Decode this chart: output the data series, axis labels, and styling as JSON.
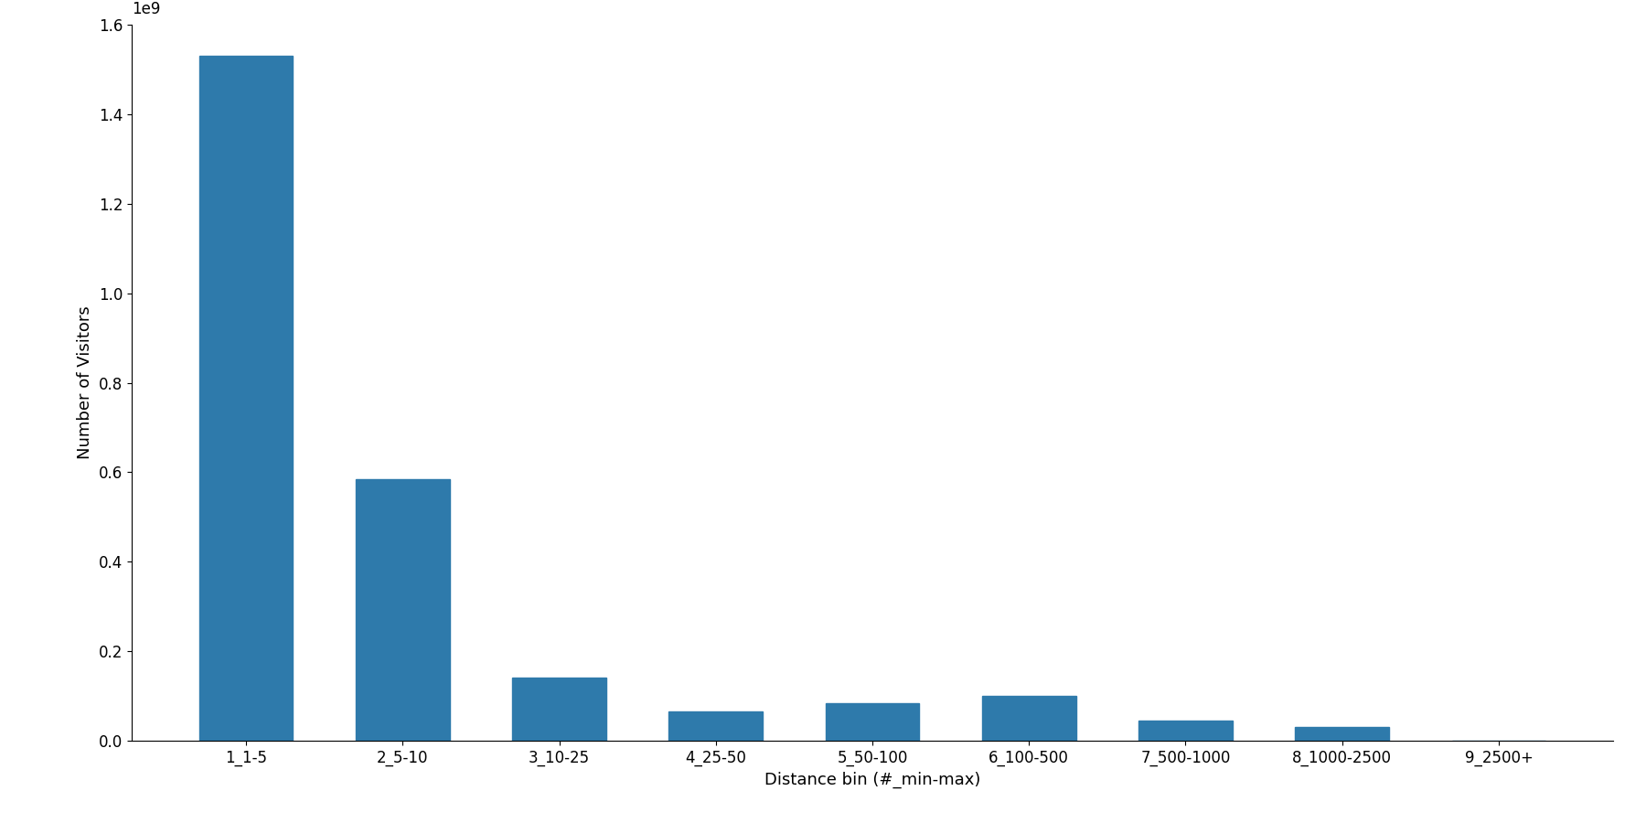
{
  "categories": [
    "1_1-5",
    "2_5-10",
    "3_10-25",
    "4_25-50",
    "5_50-100",
    "6_100-500",
    "7_500-1000",
    "8_1000-2500",
    "9_2500+"
  ],
  "values": [
    1530000000,
    585000000,
    140000000,
    65000000,
    83000000,
    100000000,
    45000000,
    30000000,
    1000000
  ],
  "bar_color": "#2e7aab",
  "xlabel": "Distance bin (#_min-max)",
  "ylabel": "Number of Visitors",
  "ylim": [
    0,
    1600000000.0
  ],
  "yticks": [
    0.0,
    200000000.0,
    400000000.0,
    600000000.0,
    800000000.0,
    1000000000.0,
    1200000000.0,
    1400000000.0,
    1600000000.0
  ],
  "ytick_labels": [
    "0.0",
    "0.2",
    "0.4",
    "0.6",
    "0.8",
    "1.0",
    "1.2",
    "1.4",
    "1.6"
  ],
  "title": "",
  "background_color": "#ffffff",
  "figsize": [
    18.0,
    9.0
  ],
  "dpi": 100
}
